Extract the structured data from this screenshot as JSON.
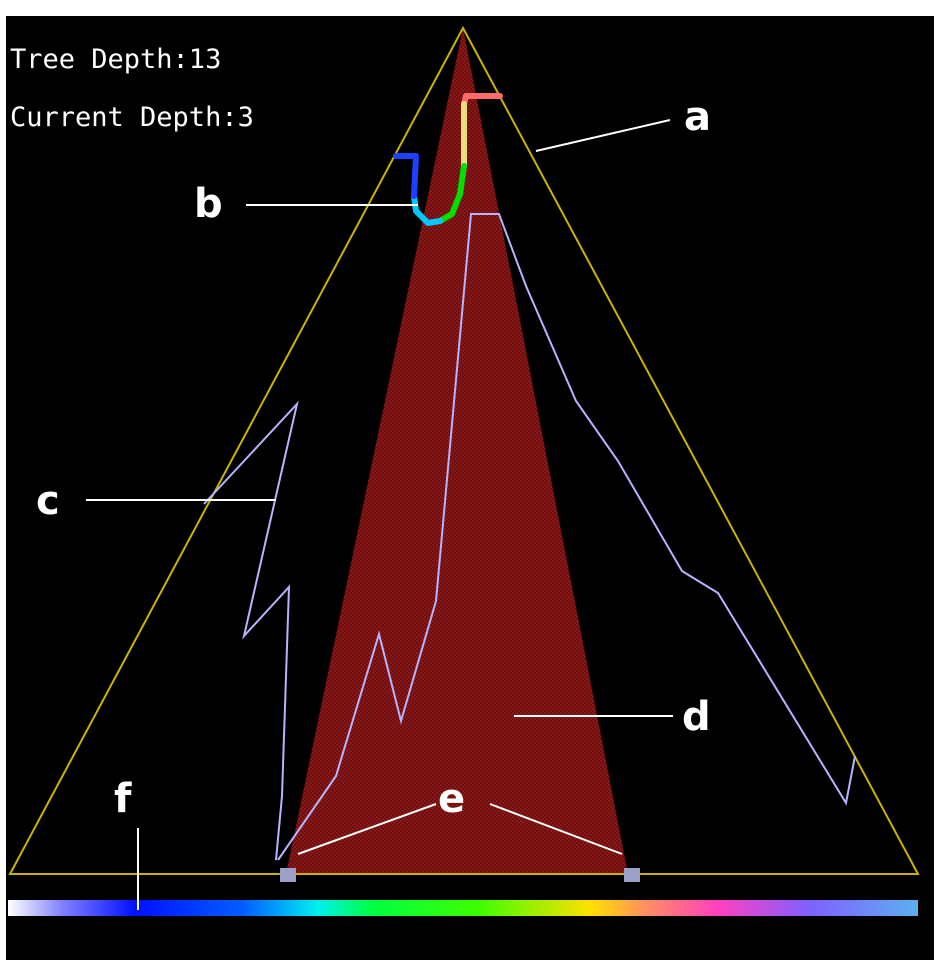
{
  "info": {
    "tree_depth_text": "Tree Depth:13",
    "current_depth_text": "Current Depth:3"
  },
  "labels": {
    "a": "a",
    "b": "b",
    "c": "c",
    "d": "d",
    "e": "e",
    "f": "f"
  },
  "colors": {
    "background": "#000000",
    "frame": "#c8b400",
    "shaded_region": "#7a1414",
    "path_line": "#b4b4ff",
    "leader_line": "#ffffff",
    "marker": "#9aa0c8",
    "depth_curve": [
      "#ff6b6b",
      "#e6e080",
      "#00e000",
      "#00c8ff",
      "#2040ff"
    ],
    "gradient_bar": [
      "#ffffff",
      "#8080ff",
      "#0010ff",
      "#0060ff",
      "#00f0f0",
      "#00ff40",
      "#40ff00",
      "#ffe000",
      "#ff9060",
      "#ff40c0",
      "#8060ff",
      "#5cb0f0"
    ]
  }
}
